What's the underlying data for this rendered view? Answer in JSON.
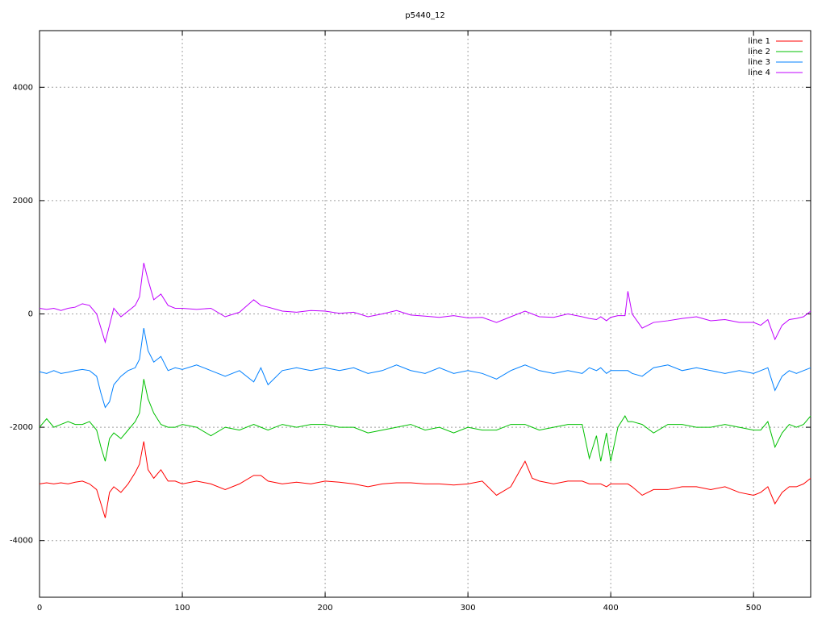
{
  "chart_data": {
    "type": "line",
    "title": "p5440_12",
    "x": [
      0,
      5,
      10,
      15,
      20,
      25,
      30,
      35,
      40,
      43,
      46,
      49,
      52,
      57,
      62,
      67,
      70,
      73,
      76,
      80,
      85,
      90,
      95,
      100,
      110,
      120,
      130,
      140,
      150,
      155,
      160,
      170,
      180,
      190,
      200,
      210,
      220,
      230,
      240,
      250,
      260,
      270,
      280,
      290,
      300,
      310,
      320,
      330,
      340,
      345,
      350,
      360,
      370,
      380,
      385,
      390,
      393,
      397,
      400,
      405,
      410,
      412,
      415,
      422,
      430,
      440,
      450,
      460,
      470,
      480,
      490,
      500,
      505,
      510,
      515,
      520,
      525,
      530,
      535,
      540
    ],
    "series": [
      {
        "name": "line 1",
        "color": "#ff0000",
        "values": [
          -3000,
          -2980,
          -3000,
          -2980,
          -3000,
          -2970,
          -2950,
          -3000,
          -3100,
          -3350,
          -3600,
          -3150,
          -3050,
          -3150,
          -3000,
          -2800,
          -2650,
          -2250,
          -2750,
          -2900,
          -2750,
          -2950,
          -2950,
          -3000,
          -2950,
          -3000,
          -3100,
          -3000,
          -2850,
          -2850,
          -2950,
          -3000,
          -2970,
          -3000,
          -2950,
          -2970,
          -3000,
          -3050,
          -3000,
          -2980,
          -2980,
          -3000,
          -3000,
          -3020,
          -3000,
          -2950,
          -3200,
          -3050,
          -2600,
          -2900,
          -2950,
          -3000,
          -2950,
          -2950,
          -3000,
          -3000,
          -3000,
          -3050,
          -3000,
          -3000,
          -3000,
          -3000,
          -3050,
          -3200,
          -3100,
          -3100,
          -3050,
          -3050,
          -3100,
          -3050,
          -3150,
          -3200,
          -3150,
          -3050,
          -3350,
          -3150,
          -3050,
          -3050,
          -3000,
          -2900
        ]
      },
      {
        "name": "line 2",
        "color": "#00c000",
        "values": [
          -2000,
          -1850,
          -2000,
          -1950,
          -1900,
          -1950,
          -1950,
          -1900,
          -2050,
          -2350,
          -2600,
          -2200,
          -2100,
          -2200,
          -2050,
          -1900,
          -1750,
          -1150,
          -1500,
          -1750,
          -1950,
          -2000,
          -2000,
          -1950,
          -2000,
          -2150,
          -2000,
          -2050,
          -1950,
          -2000,
          -2050,
          -1950,
          -2000,
          -1950,
          -1950,
          -2000,
          -2000,
          -2100,
          -2050,
          -2000,
          -1950,
          -2050,
          -2000,
          -2100,
          -2000,
          -2050,
          -2050,
          -1950,
          -1950,
          -2000,
          -2050,
          -2000,
          -1950,
          -1950,
          -2550,
          -2150,
          -2600,
          -2100,
          -2600,
          -2000,
          -1800,
          -1900,
          -1900,
          -1950,
          -2100,
          -1950,
          -1950,
          -2000,
          -2000,
          -1950,
          -2000,
          -2050,
          -2050,
          -1900,
          -2350,
          -2100,
          -1950,
          -2000,
          -1950,
          -1800
        ]
      },
      {
        "name": "line 3",
        "color": "#0080ff",
        "values": [
          -1020,
          -1050,
          -1000,
          -1050,
          -1030,
          -1000,
          -980,
          -1000,
          -1100,
          -1400,
          -1650,
          -1550,
          -1250,
          -1100,
          -1000,
          -950,
          -800,
          -250,
          -650,
          -850,
          -750,
          -1000,
          -950,
          -980,
          -900,
          -1000,
          -1100,
          -1000,
          -1200,
          -950,
          -1250,
          -1000,
          -950,
          -1000,
          -950,
          -1000,
          -950,
          -1050,
          -1000,
          -900,
          -1000,
          -1050,
          -950,
          -1050,
          -1000,
          -1050,
          -1150,
          -1000,
          -900,
          -950,
          -1000,
          -1050,
          -1000,
          -1050,
          -950,
          -1000,
          -950,
          -1050,
          -1000,
          -1000,
          -1000,
          -1000,
          -1050,
          -1100,
          -950,
          -900,
          -1000,
          -950,
          -1000,
          -1050,
          -1000,
          -1050,
          -1000,
          -950,
          -1350,
          -1100,
          -1000,
          -1050,
          -1000,
          -950
        ]
      },
      {
        "name": "line 4",
        "color": "#c000ff",
        "values": [
          100,
          80,
          100,
          60,
          100,
          120,
          180,
          150,
          0,
          -250,
          -500,
          -200,
          100,
          -50,
          50,
          150,
          300,
          900,
          600,
          250,
          350,
          150,
          100,
          100,
          80,
          100,
          -50,
          30,
          250,
          150,
          120,
          50,
          30,
          60,
          50,
          10,
          30,
          -50,
          0,
          60,
          -20,
          -40,
          -60,
          -30,
          -70,
          -60,
          -150,
          -50,
          50,
          0,
          -50,
          -60,
          0,
          -50,
          -80,
          -100,
          -50,
          -120,
          -60,
          -30,
          -30,
          400,
          0,
          -250,
          -150,
          -120,
          -80,
          -50,
          -120,
          -100,
          -150,
          -150,
          -200,
          -100,
          -450,
          -200,
          -100,
          -80,
          -50,
          50
        ]
      }
    ],
    "xlim": [
      0,
      540
    ],
    "xticks": [
      0,
      100,
      200,
      300,
      400,
      500
    ],
    "ylim": [
      -5000,
      5000
    ],
    "yticks": [
      -4000,
      -2000,
      0,
      2000,
      4000
    ],
    "grid": true,
    "legend": "top-right"
  }
}
